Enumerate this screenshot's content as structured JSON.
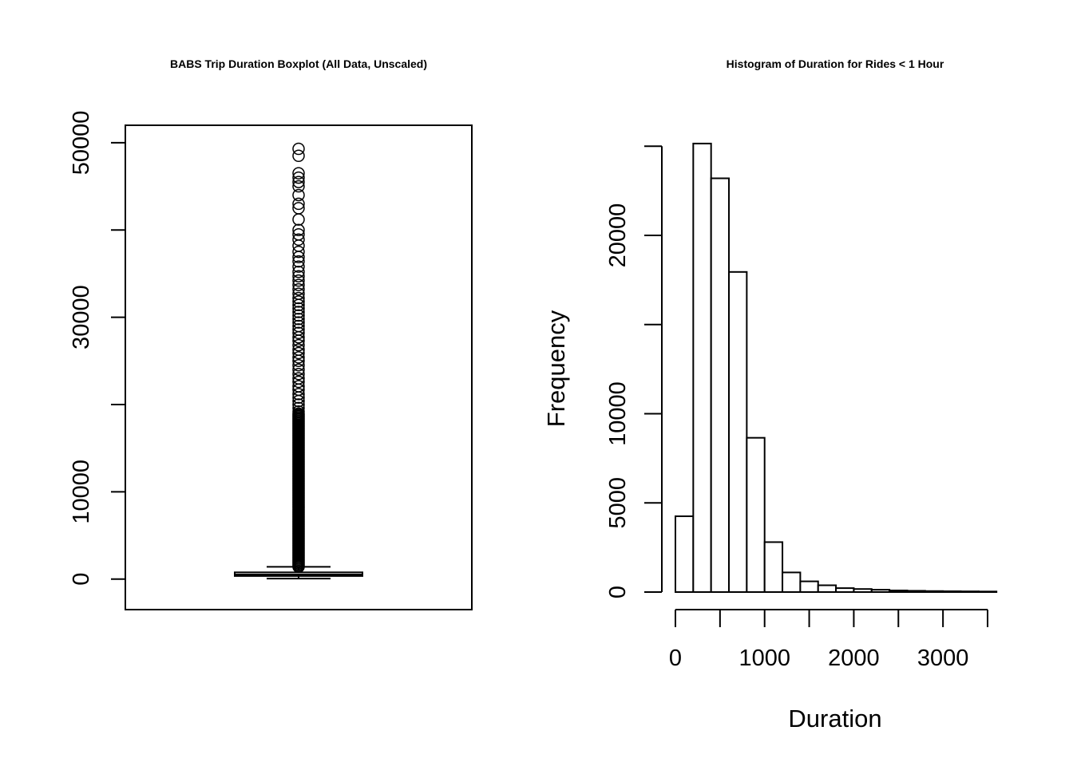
{
  "chart_data": [
    {
      "type": "boxplot",
      "title": "BABS Trip Duration Boxplot (All Data, Unscaled)",
      "xlabel": "",
      "ylabel": "",
      "ylim": [
        -3500,
        52000
      ],
      "yticks": [
        0,
        10000,
        20000,
        30000,
        40000,
        50000
      ],
      "ytick_labels": [
        "0",
        "10000",
        "",
        "30000",
        "",
        "50000"
      ],
      "box": {
        "min": 60,
        "q1": 350,
        "median": 520,
        "q3": 770,
        "whisker_high": 1400
      },
      "outliers_dense_range": [
        1400,
        19000
      ],
      "outliers": [
        19200,
        19600,
        20000,
        20400,
        20800,
        21200,
        21700,
        22100,
        22600,
        23000,
        23500,
        24000,
        24500,
        25000,
        25400,
        25900,
        26300,
        26800,
        27300,
        27700,
        28200,
        28600,
        29000,
        29400,
        29800,
        30200,
        30600,
        31000,
        31400,
        31800,
        32200,
        32700,
        33200,
        33700,
        34200,
        34700,
        35200,
        35800,
        36400,
        36900,
        37500,
        38200,
        38900,
        39500,
        40000,
        41200,
        42500,
        43000,
        44000,
        45000,
        45500,
        46000,
        46500,
        48500,
        49300
      ]
    },
    {
      "type": "histogram",
      "title": "Histogram of Duration for Rides < 1 Hour",
      "xlabel": "Duration",
      "ylabel": "Frequency",
      "xlim": [
        0,
        3600
      ],
      "ylim": [
        0,
        25000
      ],
      "xticks": [
        0,
        500,
        1000,
        1500,
        2000,
        2500,
        3000,
        3500
      ],
      "xtick_labels": [
        "0",
        "",
        "1000",
        "",
        "2000",
        "",
        "3000",
        ""
      ],
      "yticks": [
        0,
        5000,
        10000,
        15000,
        20000,
        25000
      ],
      "ytick_labels": [
        "0",
        "5000",
        "10000",
        "",
        "20000",
        ""
      ],
      "bin_width": 200,
      "bin_starts": [
        0,
        200,
        400,
        600,
        800,
        1000,
        1200,
        1400,
        1600,
        1800,
        2000,
        2200,
        2400,
        2600,
        2800,
        3000,
        3200,
        3400
      ],
      "values": [
        4250,
        25150,
        23200,
        17950,
        8650,
        2800,
        1100,
        600,
        380,
        220,
        170,
        130,
        90,
        70,
        55,
        45,
        38,
        30
      ]
    }
  ]
}
